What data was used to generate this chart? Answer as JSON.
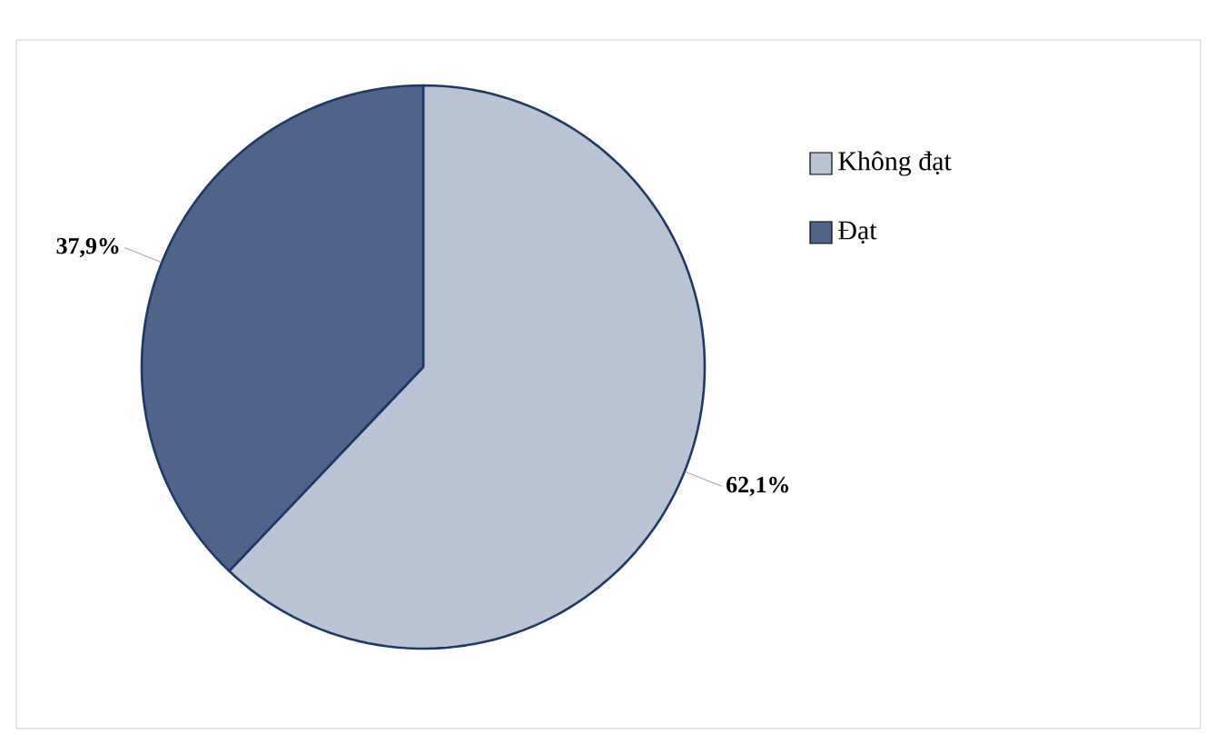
{
  "chart_data": {
    "type": "pie",
    "categories": [
      "Không đạt",
      "Đạt"
    ],
    "values": [
      62.1,
      37.9
    ],
    "colors": [
      "#b9c3d3",
      "#4f6488"
    ],
    "value_labels": [
      "62,1%",
      "37,9%"
    ],
    "legend": "right"
  }
}
